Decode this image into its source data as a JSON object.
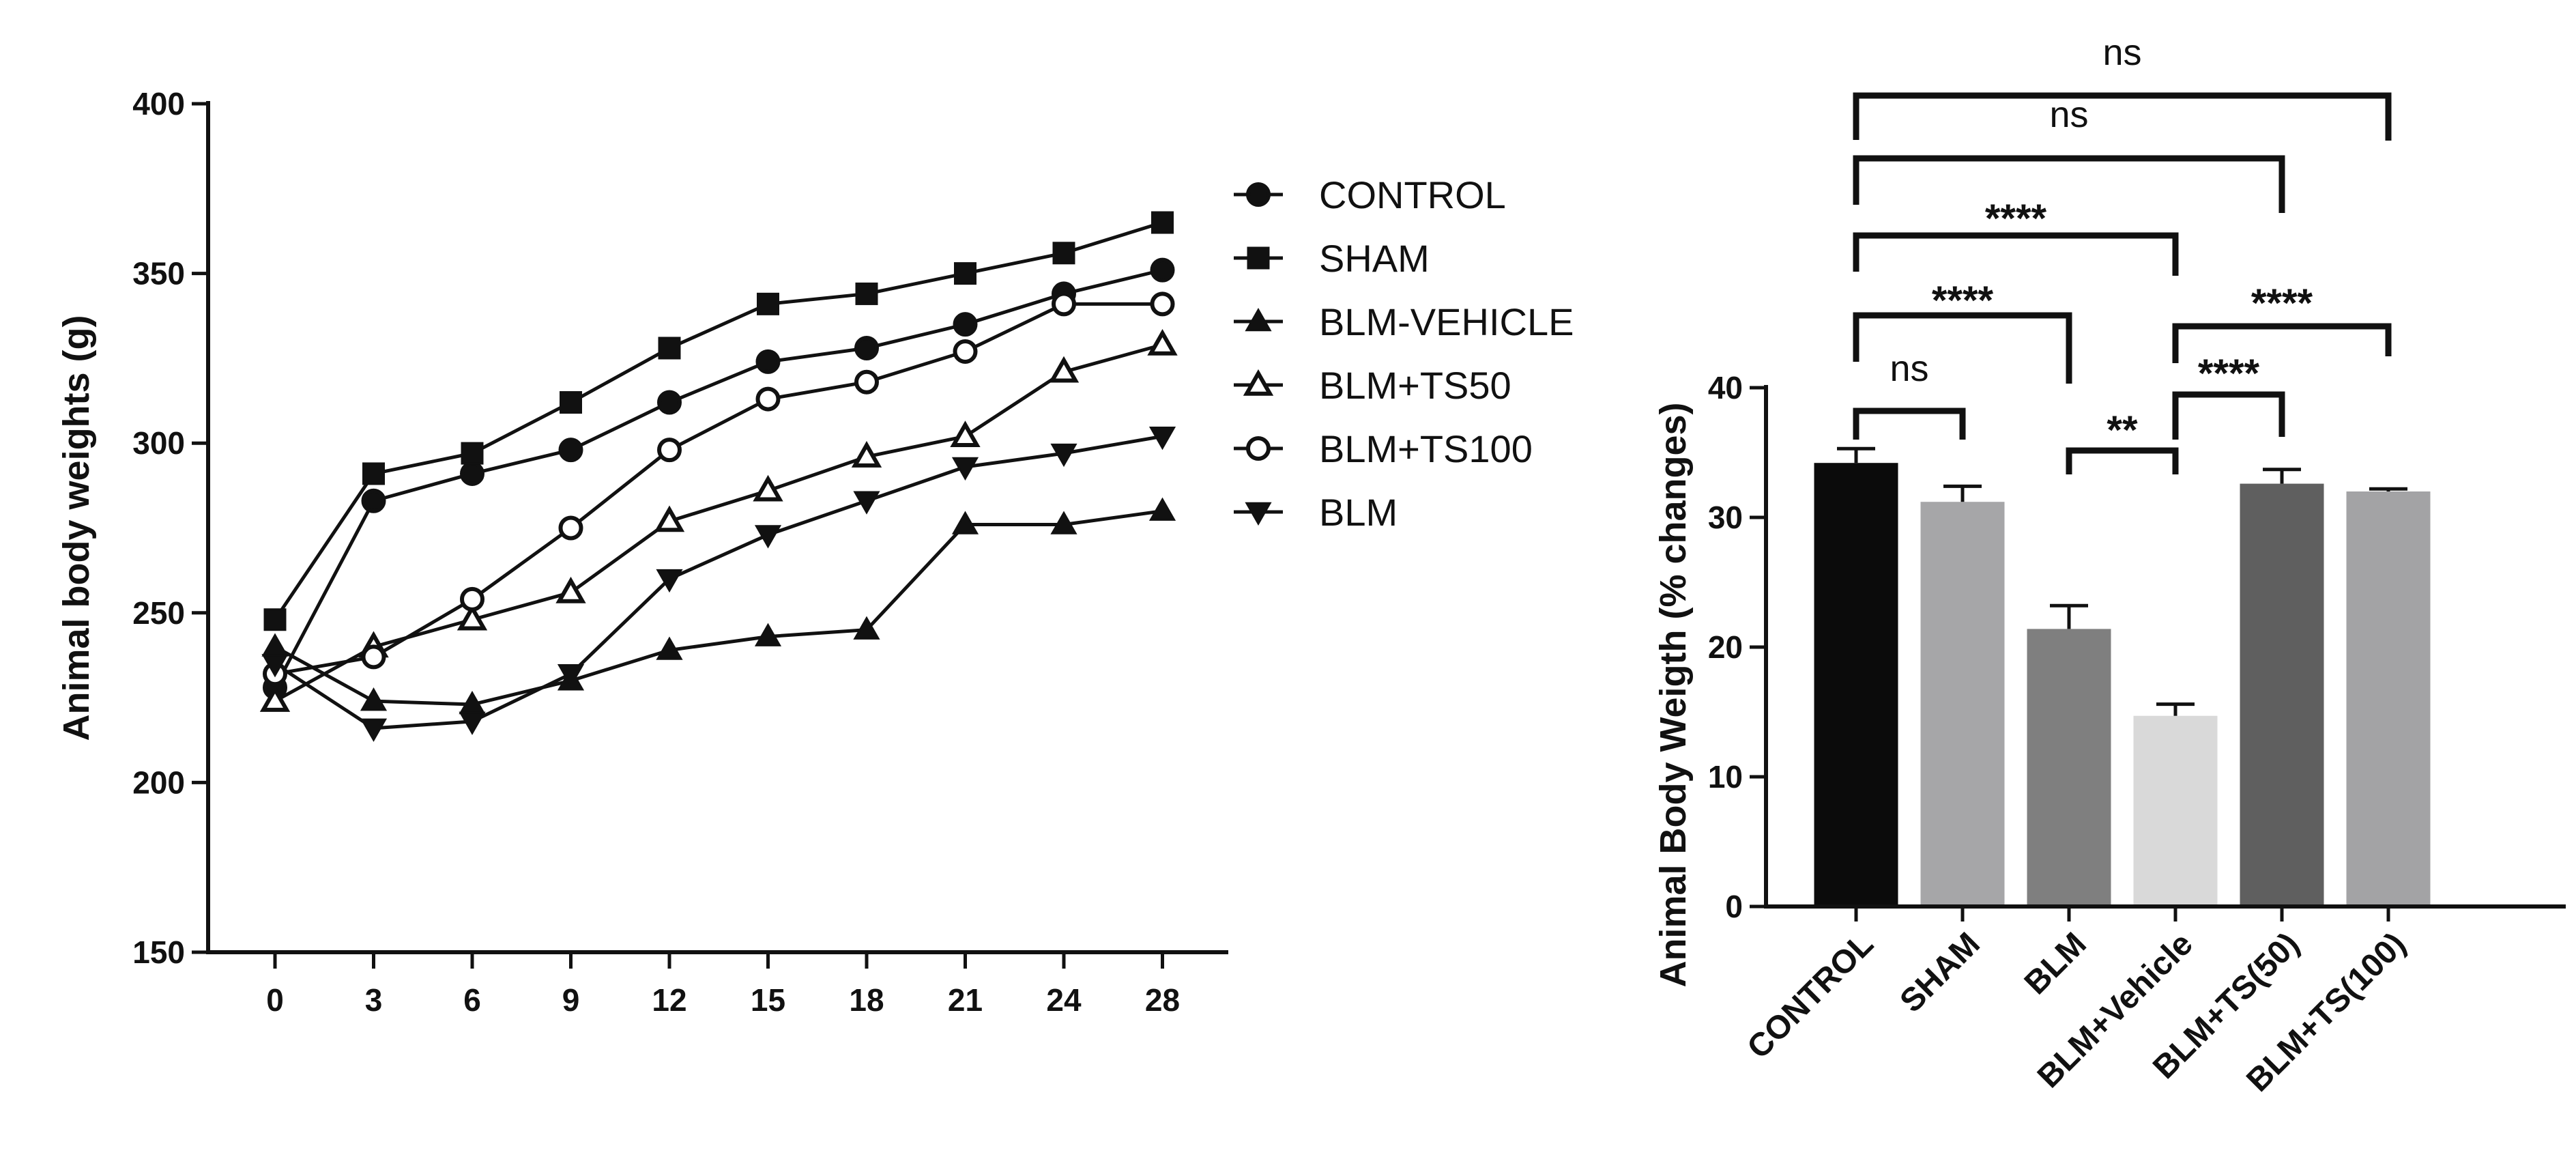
{
  "chart_data": [
    {
      "type": "line",
      "title": "",
      "xlabel": "",
      "ylabel": "Animal body weights (g)",
      "ylim": [
        150,
        400
      ],
      "yticks": [
        150,
        200,
        250,
        300,
        350,
        400
      ],
      "x": [
        0,
        3,
        6,
        9,
        12,
        15,
        18,
        21,
        24,
        28
      ],
      "legend_position": "right",
      "series": [
        {
          "name": "CONTROL",
          "marker": "circle-filled",
          "values": [
            228,
            283,
            291,
            298,
            312,
            324,
            328,
            335,
            344,
            351
          ]
        },
        {
          "name": "SHAM",
          "marker": "square-filled",
          "values": [
            248,
            291,
            297,
            312,
            328,
            341,
            344,
            350,
            356,
            365
          ]
        },
        {
          "name": "BLM-VEHICLE",
          "marker": "triangle-up-filled",
          "values": [
            240,
            224,
            223,
            230,
            239,
            243,
            245,
            276,
            276,
            280
          ]
        },
        {
          "name": "BLM+TS50",
          "marker": "triangle-up-open",
          "values": [
            224,
            240,
            248,
            256,
            277,
            286,
            296,
            302,
            321,
            329
          ]
        },
        {
          "name": "BLM+TS100",
          "marker": "circle-open",
          "values": [
            232,
            237,
            254,
            275,
            298,
            313,
            318,
            327,
            341,
            341
          ]
        },
        {
          "name": "BLM",
          "marker": "triangle-down-filled",
          "values": [
            235,
            216,
            218,
            232,
            260,
            273,
            283,
            293,
            297,
            302
          ]
        }
      ]
    },
    {
      "type": "bar",
      "title": "",
      "xlabel": "",
      "ylabel": "Animal Body Weigth (% changes)",
      "ylim": [
        0,
        40
      ],
      "yticks": [
        0,
        10,
        20,
        30,
        40
      ],
      "categories": [
        "CONTROL",
        "SHAM",
        "BLM",
        "BLM+Vehicle",
        "BLM+TS(50)",
        "BLM+TS(100)"
      ],
      "values": [
        34.2,
        31.2,
        21.4,
        14.7,
        32.6,
        32.0
      ],
      "errors": [
        1.1,
        1.2,
        1.8,
        0.9,
        1.1,
        0.2
      ],
      "colors": [
        "#0b0b0b",
        "#a6a6a8",
        "#7f7f7f",
        "#d9d9d9",
        "#5f5f5f",
        "#a3a3a5"
      ],
      "comparisons": [
        {
          "from": 0,
          "to": 1,
          "label": "ns"
        },
        {
          "from": 0,
          "to": 2,
          "label": "****"
        },
        {
          "from": 0,
          "to": 3,
          "label": "****"
        },
        {
          "from": 0,
          "to": 4,
          "label": "ns"
        },
        {
          "from": 0,
          "to": 5,
          "label": "ns"
        },
        {
          "from": 2,
          "to": 3,
          "label": "**"
        },
        {
          "from": 3,
          "to": 4,
          "label": "****"
        },
        {
          "from": 3,
          "to": 5,
          "label": "****"
        }
      ]
    }
  ]
}
